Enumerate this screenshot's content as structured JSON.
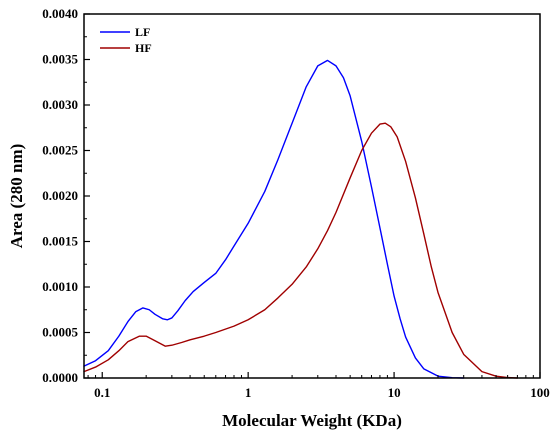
{
  "chart_data": {
    "type": "line",
    "xlabel": "Molecular Weight (KDa)",
    "ylabel": "Area (280 nm)",
    "xscale": "log",
    "xlim": [
      0.075,
      100
    ],
    "ylim": [
      0,
      0.004
    ],
    "x_ticks": [
      0.1,
      1,
      10,
      100
    ],
    "x_tick_labels": [
      "0.1",
      "1",
      "10",
      "100"
    ],
    "y_ticks": [
      0,
      0.0005,
      0.001,
      0.0015,
      0.002,
      0.0025,
      0.003,
      0.0035,
      0.004
    ],
    "y_tick_labels": [
      "0.0000",
      "0.0005",
      "0.0010",
      "0.0015",
      "0.0020",
      "0.0025",
      "0.0030",
      "0.0035",
      "0.0040"
    ],
    "grid": false,
    "legend_position": "top-left",
    "series": [
      {
        "name": "LF",
        "color": "#0000ff",
        "x": [
          0.075,
          0.09,
          0.11,
          0.13,
          0.15,
          0.17,
          0.19,
          0.21,
          0.23,
          0.26,
          0.28,
          0.3,
          0.33,
          0.37,
          0.42,
          0.5,
          0.6,
          0.7,
          0.8,
          1.0,
          1.3,
          1.6,
          2.0,
          2.5,
          3.0,
          3.5,
          4.0,
          4.5,
          5.0,
          6.0,
          7.0,
          8.0,
          9.0,
          10,
          11,
          12,
          14,
          16,
          20,
          25,
          30
        ],
        "y": [
          0.00013,
          0.00019,
          0.0003,
          0.00046,
          0.00062,
          0.00073,
          0.00077,
          0.00075,
          0.0007,
          0.00065,
          0.00064,
          0.00066,
          0.00074,
          0.00085,
          0.00095,
          0.00105,
          0.00115,
          0.0013,
          0.00145,
          0.0017,
          0.00205,
          0.0024,
          0.0028,
          0.0032,
          0.00343,
          0.00349,
          0.00343,
          0.0033,
          0.0031,
          0.0026,
          0.0021,
          0.00165,
          0.00125,
          0.0009,
          0.00065,
          0.00045,
          0.00022,
          0.0001,
          2e-05,
          3e-06,
          0.0
        ],
        "show_in_legend": true
      },
      {
        "name": "HF",
        "legend_label": "HF",
        "color": "#a00000",
        "x": [
          0.075,
          0.09,
          0.11,
          0.13,
          0.15,
          0.18,
          0.2,
          0.23,
          0.27,
          0.3,
          0.35,
          0.4,
          0.5,
          0.6,
          0.8,
          1.0,
          1.3,
          1.6,
          2.0,
          2.5,
          3.0,
          3.5,
          4.0,
          5.0,
          6.0,
          7.0,
          8.0,
          8.7,
          9.5,
          10.5,
          12,
          14,
          16,
          18,
          20,
          25,
          30,
          40,
          50,
          60,
          70
        ],
        "y": [
          7e-05,
          0.00012,
          0.0002,
          0.0003,
          0.0004,
          0.00046,
          0.00046,
          0.00041,
          0.00035,
          0.00036,
          0.00039,
          0.00042,
          0.00046,
          0.0005,
          0.00057,
          0.00064,
          0.00075,
          0.00088,
          0.00103,
          0.00122,
          0.00142,
          0.00162,
          0.00182,
          0.0022,
          0.0025,
          0.00269,
          0.00279,
          0.0028,
          0.00276,
          0.00265,
          0.00238,
          0.00198,
          0.00158,
          0.00122,
          0.00094,
          0.0005,
          0.00026,
          7e-05,
          2e-05,
          5e-06,
          0.0
        ],
        "show_in_legend": true
      }
    ]
  }
}
